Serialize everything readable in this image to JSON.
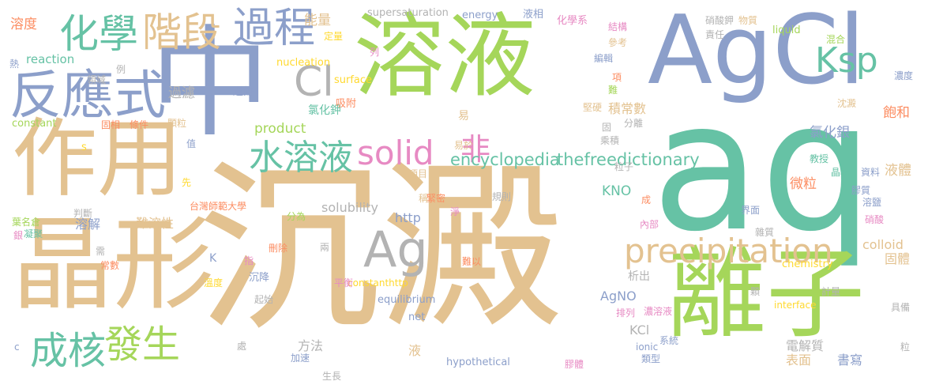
{
  "palette": {
    "tan": "#e3c290",
    "green": "#a5d65a",
    "blue": "#8c9fca",
    "teal": "#66c2a5",
    "pink": "#e78ac3",
    "orange": "#fc8d62",
    "yellow": "#ffd92f",
    "gray": "#b3b3b3"
  },
  "words": [
    {
      "text": "沉澱",
      "color": "#e3c290"
    },
    {
      "text": "aq",
      "color": "#66c2a5"
    },
    {
      "text": "AgCl",
      "color": "#8c9fca"
    },
    {
      "text": "中",
      "color": "#8c9fca"
    },
    {
      "text": "溶液",
      "color": "#a5d65a"
    },
    {
      "text": "晶形",
      "color": "#e3c290"
    },
    {
      "text": "作用",
      "color": "#e3c290"
    },
    {
      "text": "離子",
      "color": "#a5d65a"
    },
    {
      "text": "反應式",
      "color": "#8c9fca"
    },
    {
      "text": "化學",
      "color": "#66c2a5"
    },
    {
      "text": "階段",
      "color": "#e3c290"
    },
    {
      "text": "過程",
      "color": "#8c9fca"
    },
    {
      "text": "Ksp",
      "color": "#66c2a5"
    },
    {
      "text": "Cl",
      "color": "#b3b3b3"
    },
    {
      "text": "precipitation",
      "color": "#e3c290"
    },
    {
      "text": "Ag",
      "color": "#b3b3b3"
    },
    {
      "text": "水溶液",
      "color": "#66c2a5"
    },
    {
      "text": "solid",
      "color": "#e78ac3"
    },
    {
      "text": "非",
      "color": "#e78ac3"
    },
    {
      "text": "成核",
      "color": "#66c2a5"
    },
    {
      "text": "發生",
      "color": "#a5d65a"
    },
    {
      "text": "encyclopedia",
      "color": "#66c2a5"
    },
    {
      "text": "thefreedictionary",
      "color": "#66c2a5"
    },
    {
      "text": "溶度",
      "color": "#fc8d62"
    },
    {
      "text": "能量",
      "color": "#e3c290"
    },
    {
      "text": "supersaturation",
      "color": "#b3b3b3"
    },
    {
      "text": "energy",
      "color": "#8c9fca"
    },
    {
      "text": "液相",
      "color": "#8c9fca"
    },
    {
      "text": "化學系",
      "color": "#e78ac3"
    },
    {
      "text": "硝酸鉀",
      "color": "#b3b3b3"
    },
    {
      "text": "物質",
      "color": "#e3c290"
    },
    {
      "text": "liquid",
      "color": "#a5d65a"
    },
    {
      "text": "reaction",
      "color": "#66c2a5"
    },
    {
      "text": "nucleation",
      "color": "#ffd92f"
    },
    {
      "text": "surface",
      "color": "#ffd92f"
    },
    {
      "text": "product",
      "color": "#a5d65a"
    },
    {
      "text": "constant",
      "color": "#a5d65a"
    },
    {
      "text": "氯化鉀",
      "color": "#66c2a5"
    },
    {
      "text": "積常數",
      "color": "#e3c290"
    },
    {
      "text": "氯化銀",
      "color": "#8c9fca"
    },
    {
      "text": "飽和",
      "color": "#fc8d62"
    },
    {
      "text": "過濾",
      "color": "#b3b3b3"
    },
    {
      "text": "過飽",
      "color": "#8c9fca"
    },
    {
      "text": "吸附",
      "color": "#fc8d62"
    },
    {
      "text": "固相",
      "color": "#fc8d62"
    },
    {
      "text": "條件",
      "color": "#fc8d62"
    },
    {
      "text": "顆粒",
      "color": "#e3c290"
    },
    {
      "text": "易",
      "color": "#e3c290"
    },
    {
      "text": "堅硬",
      "color": "#e3c290"
    },
    {
      "text": "沈澱",
      "color": "#e3c290"
    },
    {
      "text": "濃度",
      "color": "#8c9fca"
    },
    {
      "text": "液體",
      "color": "#e3c290"
    },
    {
      "text": "微粒",
      "color": "#fc8d62"
    },
    {
      "text": "KNO",
      "color": "#66c2a5"
    },
    {
      "text": "solubility",
      "color": "#b3b3b3"
    },
    {
      "text": "http",
      "color": "#8c9fca"
    },
    {
      "text": "溶解",
      "color": "#8c9fca"
    },
    {
      "text": "難溶性",
      "color": "#e3c290"
    },
    {
      "text": "台灣師範大學",
      "color": "#fc8d62"
    },
    {
      "text": "colloid",
      "color": "#e3c290"
    },
    {
      "text": "固體",
      "color": "#e3c290"
    },
    {
      "text": "chemistry",
      "color": "#ffd92f"
    },
    {
      "text": "AgNO",
      "color": "#8c9fca"
    },
    {
      "text": "析出",
      "color": "#b3b3b3"
    },
    {
      "text": "equilibrium",
      "color": "#8c9fca"
    },
    {
      "text": "constanthttp",
      "color": "#ffd92f"
    },
    {
      "text": "沉降",
      "color": "#8c9fca"
    },
    {
      "text": "平衡",
      "color": "#e78ac3"
    },
    {
      "text": "方法",
      "color": "#b3b3b3"
    },
    {
      "text": "液",
      "color": "#e3c290"
    },
    {
      "text": "KCl",
      "color": "#b3b3b3"
    },
    {
      "text": "電解質",
      "color": "#b3b3b3"
    },
    {
      "text": "表面",
      "color": "#e3c290"
    },
    {
      "text": "書寫",
      "color": "#8c9fca"
    },
    {
      "text": "interface",
      "color": "#ffd92f"
    },
    {
      "text": "hypothetical",
      "color": "#8c9fca"
    },
    {
      "text": "ionic",
      "color": "#8c9fca"
    },
    {
      "text": "膠體",
      "color": "#e78ac3"
    },
    {
      "text": "類型",
      "color": "#8c9fca"
    },
    {
      "text": "系統",
      "color": "#8c9fca"
    },
    {
      "text": "生長",
      "color": "#b3b3b3"
    },
    {
      "text": "加速",
      "color": "#8c9fca"
    },
    {
      "text": "net",
      "color": "#8c9fca"
    },
    {
      "text": "濃溶液",
      "color": "#e78ac3"
    },
    {
      "text": "排列",
      "color": "#e78ac3"
    },
    {
      "text": "熱",
      "color": "#8c9fca"
    },
    {
      "text": "領域",
      "color": "#b3b3b3"
    },
    {
      "text": "例",
      "color": "#b3b3b3"
    },
    {
      "text": "定量",
      "color": "#ffd92f"
    },
    {
      "text": "列",
      "color": "#e78ac3"
    },
    {
      "text": "項",
      "color": "#fc8d62"
    },
    {
      "text": "難",
      "color": "#a5d65a"
    },
    {
      "text": "結構",
      "color": "#e78ac3"
    },
    {
      "text": "參考",
      "color": "#e3c290"
    },
    {
      "text": "編輯",
      "color": "#8c9fca"
    },
    {
      "text": "分離",
      "color": "#b3b3b3"
    },
    {
      "text": "責任",
      "color": "#b3b3b3"
    },
    {
      "text": "混合",
      "color": "#a5d65a"
    },
    {
      "text": "固",
      "color": "#b3b3b3"
    },
    {
      "text": "乘積",
      "color": "#b3b3b3"
    },
    {
      "text": "粒子",
      "color": "#b3b3b3"
    },
    {
      "text": "易於",
      "color": "#e3c290"
    },
    {
      "text": "項目",
      "color": "#e3c290"
    },
    {
      "text": "稱為",
      "color": "#e3c290"
    },
    {
      "text": "緊密",
      "color": "#fc8d62"
    },
    {
      "text": "淨",
      "color": "#e78ac3"
    },
    {
      "text": "規則",
      "color": "#b3b3b3"
    },
    {
      "text": "成",
      "color": "#fc8d62"
    },
    {
      "text": "內部",
      "color": "#e78ac3"
    },
    {
      "text": "界面",
      "color": "#8c9fca"
    },
    {
      "text": "雜質",
      "color": "#b3b3b3"
    },
    {
      "text": "教授",
      "color": "#66c2a5"
    },
    {
      "text": "晶格",
      "color": "#66c2a5"
    },
    {
      "text": "膠質",
      "color": "#8c9fca"
    },
    {
      "text": "資料",
      "color": "#8c9fca"
    },
    {
      "text": "溶鹽",
      "color": "#8c9fca"
    },
    {
      "text": "硝酸",
      "color": "#e78ac3"
    },
    {
      "text": "值",
      "color": "#8c9fca"
    },
    {
      "text": "s",
      "color": "#ffd92f"
    },
    {
      "text": "先",
      "color": "#ffd92f"
    },
    {
      "text": "判斷",
      "color": "#b3b3b3"
    },
    {
      "text": "葉名倉",
      "color": "#a5d65a"
    },
    {
      "text": "銀",
      "color": "#e78ac3"
    },
    {
      "text": "凝聚",
      "color": "#66c2a5"
    },
    {
      "text": "需",
      "color": "#b3b3b3"
    },
    {
      "text": "K",
      "color": "#8c9fca"
    },
    {
      "text": "常數",
      "color": "#fc8d62"
    },
    {
      "text": "指",
      "color": "#e78ac3"
    },
    {
      "text": "溫度",
      "color": "#ffd92f"
    },
    {
      "text": "刪除",
      "color": "#fc8d62"
    },
    {
      "text": "兩",
      "color": "#b3b3b3"
    },
    {
      "text": "分為",
      "color": "#a5d65a"
    },
    {
      "text": "難以",
      "color": "#fc8d62"
    },
    {
      "text": "起始",
      "color": "#b3b3b3"
    },
    {
      "text": "處",
      "color": "#b3b3b3"
    },
    {
      "text": "c",
      "color": "#8c9fca"
    },
    {
      "text": "顆",
      "color": "#b3b3b3"
    },
    {
      "text": "計量",
      "color": "#b3b3b3"
    },
    {
      "text": "具備",
      "color": "#b3b3b3"
    },
    {
      "text": "粒",
      "color": "#b3b3b3"
    }
  ]
}
